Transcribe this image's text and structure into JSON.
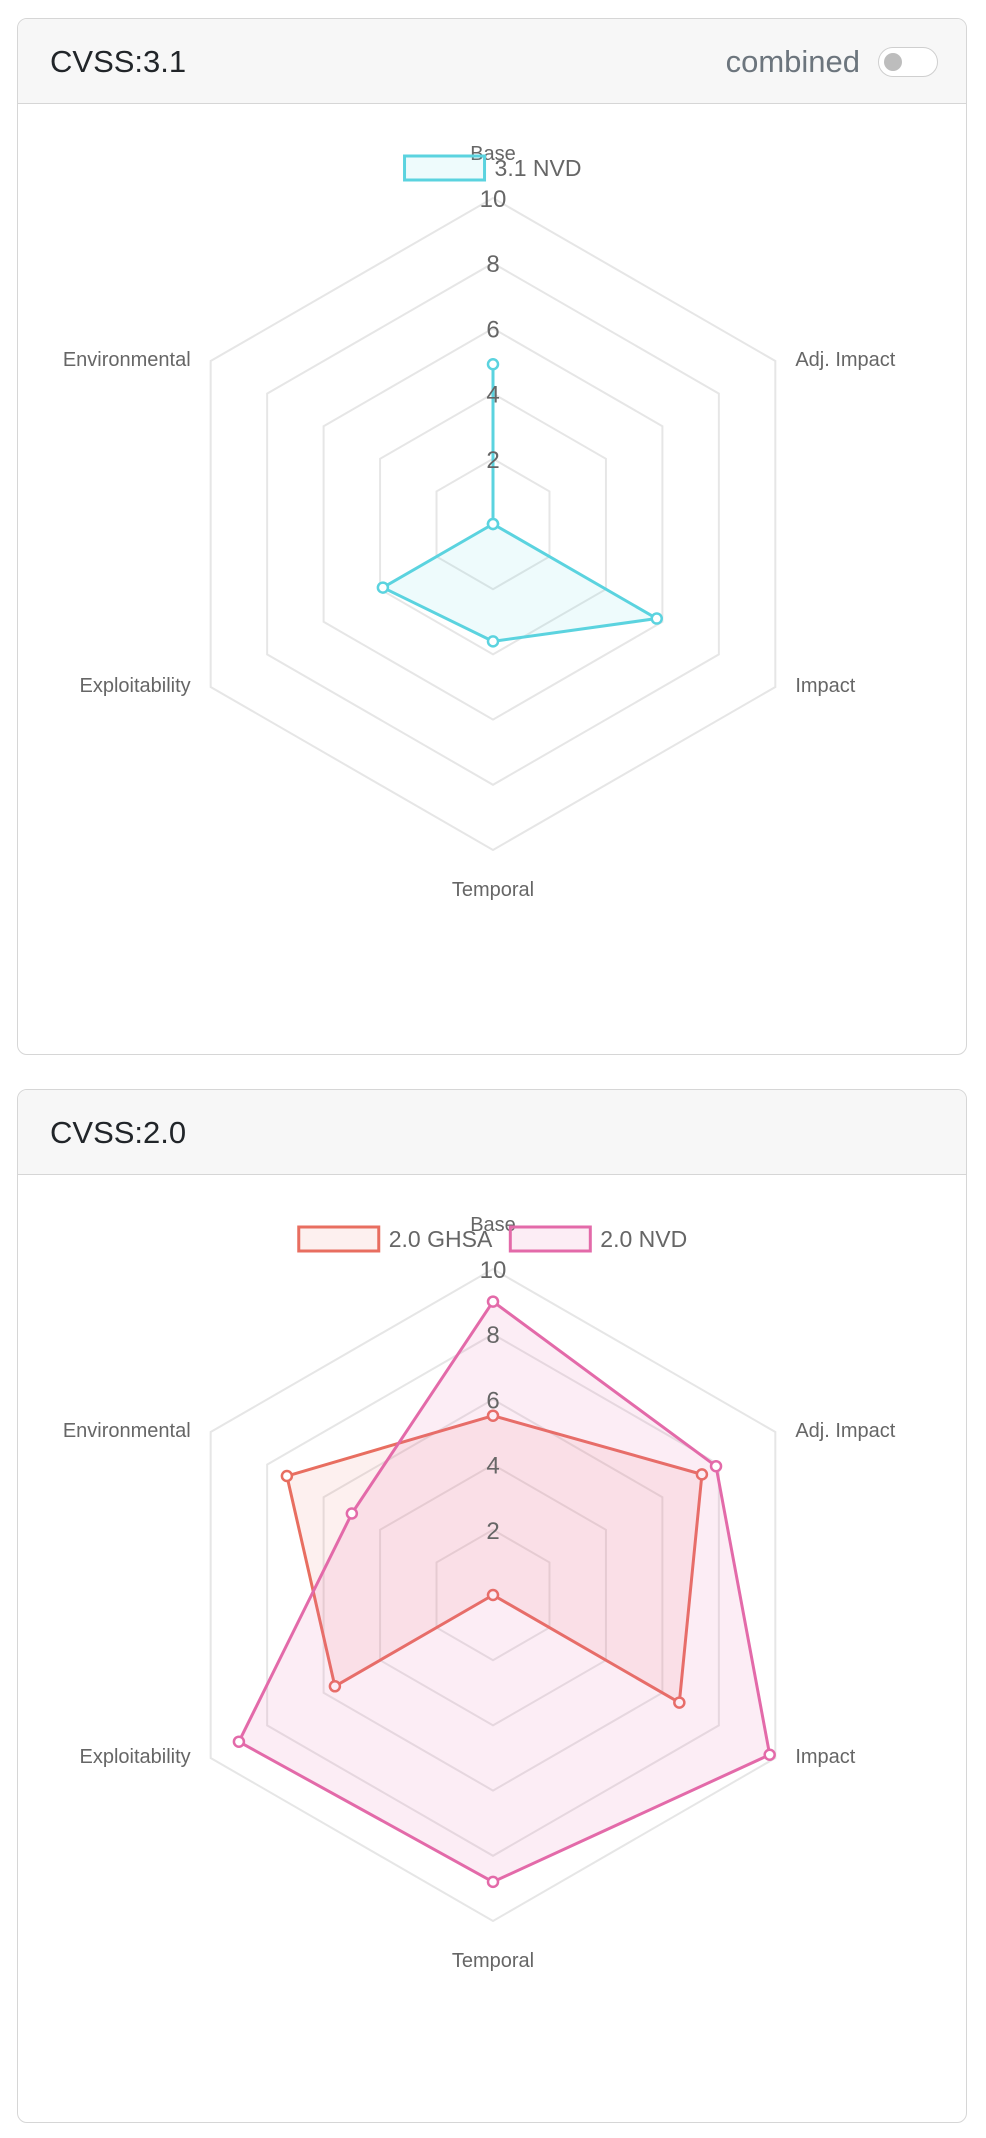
{
  "chart_data": [
    {
      "type": "radar",
      "title": "CVSS:3.1",
      "toggle": {
        "label": "combined",
        "checked": false
      },
      "axes": [
        "Base",
        "Adj. Impact",
        "Impact",
        "Temporal",
        "Exploitability",
        "Environmental"
      ],
      "r_range": [
        0,
        10
      ],
      "ticks": [
        "2",
        "4",
        "6",
        "8",
        "10"
      ],
      "legend_position": "top",
      "series": [
        {
          "name": "3.1 NVD",
          "values": [
            4.9,
            0,
            5.8,
            3.6,
            3.9,
            0
          ],
          "color": "#5bd3df",
          "fill": "rgba(91,211,223,0.10)"
        }
      ]
    },
    {
      "type": "radar",
      "title": "CVSS:2.0",
      "axes": [
        "Base",
        "Adj. Impact",
        "Impact",
        "Temporal",
        "Exploitability",
        "Environmental"
      ],
      "r_range": [
        0,
        10
      ],
      "ticks": [
        "2",
        "4",
        "6",
        "8",
        "10"
      ],
      "legend_position": "top",
      "series": [
        {
          "name": "2.0 GHSA",
          "values": [
            5.5,
            7.4,
            6.6,
            0,
            5.6,
            7.3
          ],
          "color": "#e86e60",
          "fill": "rgba(232,110,96,0.10)"
        },
        {
          "name": "2.0 NVD",
          "values": [
            9.0,
            7.9,
            9.8,
            8.8,
            9.0,
            5.0
          ],
          "color": "#e36aa9",
          "fill": "rgba(227,106,169,0.12)"
        }
      ]
    }
  ]
}
